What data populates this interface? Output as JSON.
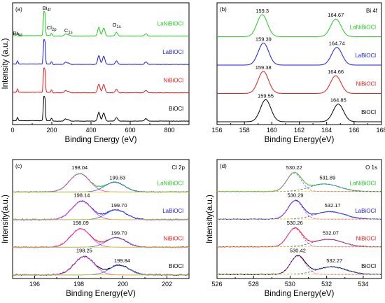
{
  "chart_data": [
    {
      "type": "line",
      "panel_label": "(a)",
      "xlabel": "Binding Energy (eV)",
      "ylabel": "Intensity (a.u.)",
      "xlim": [
        0,
        900
      ],
      "xticks": [
        0,
        200,
        400,
        600,
        800
      ],
      "series": [
        {
          "name": "LaNiBiOCl",
          "color": "#22cc22",
          "offset": 3
        },
        {
          "name": "LaBiOCl",
          "color": "#1a1aee",
          "offset": 2
        },
        {
          "name": "NiBiOCl",
          "color": "#ee1a1a",
          "offset": 1
        },
        {
          "name": "BiOCl",
          "color": "#000000",
          "offset": 0
        }
      ],
      "survey_peaks": [
        {
          "x": 25,
          "h": 0.12
        },
        {
          "x": 160,
          "h": 1.0
        },
        {
          "x": 164,
          "h": 0.85
        },
        {
          "x": 199,
          "h": 0.1
        },
        {
          "x": 270,
          "h": 0.08
        },
        {
          "x": 285,
          "h": 0.05
        },
        {
          "x": 440,
          "h": 0.32
        },
        {
          "x": 465,
          "h": 0.3
        },
        {
          "x": 530,
          "h": 0.13
        },
        {
          "x": 680,
          "h": 0.09
        }
      ],
      "annotations": [
        {
          "text": "Bi 4f",
          "x": 160
        },
        {
          "text": "Bi 5d",
          "x": 25
        },
        {
          "text": "Cl 2p",
          "x": 199
        },
        {
          "text": "C 1s",
          "x": 285
        },
        {
          "text": "O 1s",
          "x": 531
        }
      ]
    },
    {
      "type": "line",
      "panel_label": "(b)",
      "title": "Bi 4f",
      "xlabel": "Binding Energy(eV)",
      "xlim": [
        156,
        168
      ],
      "xticks": [
        156,
        158,
        160,
        162,
        164,
        166,
        168
      ],
      "series": [
        {
          "name": "LaNiBiOCl",
          "color": "#22cc22",
          "peaks": [
            159.3,
            164.67
          ]
        },
        {
          "name": "LaBiOCl",
          "color": "#1a1aee",
          "peaks": [
            159.39,
            164.74
          ]
        },
        {
          "name": "NiBiOCl",
          "color": "#ee1a1a",
          "peaks": [
            159.38,
            164.66
          ]
        },
        {
          "name": "BiOCl",
          "color": "#000000",
          "peaks": [
            159.55,
            164.85
          ]
        }
      ],
      "peak_labels": [
        [
          "159.3",
          "164.67"
        ],
        [
          "159.39",
          "164.74"
        ],
        [
          "159.38",
          "164.66"
        ],
        [
          "159.55",
          "164.85"
        ]
      ]
    },
    {
      "type": "line",
      "panel_label": "(c)",
      "title": "Cl 2p",
      "xlabel": "Binding Energy(eV)",
      "ylabel": "Intensity(a.u.)",
      "xlim": [
        195,
        203
      ],
      "xticks": [
        196,
        198,
        200,
        202
      ],
      "series": [
        {
          "name": "LaNiBiOCl",
          "color": "#22cc22",
          "peaks": [
            198.04,
            199.63
          ]
        },
        {
          "name": "LaBiOCl",
          "color": "#1a1aee",
          "peaks": [
            198.14,
            199.7
          ]
        },
        {
          "name": "NiBiOCl",
          "color": "#ee1a1a",
          "peaks": [
            198.09,
            199.7
          ]
        },
        {
          "name": "BiOCl",
          "color": "#000000",
          "peaks": [
            198.25,
            199.84
          ]
        }
      ],
      "peak_labels": [
        [
          "198.04",
          "199.63"
        ],
        [
          "198.14",
          "199.70"
        ],
        [
          "198.09",
          "199.70"
        ],
        [
          "198.25",
          "199.84"
        ]
      ]
    },
    {
      "type": "line",
      "panel_label": "(d)",
      "title": "O 1s",
      "xlabel": "Binding Energy(eV)",
      "ylabel": "Intensity(a.u.)",
      "xlim": [
        526,
        535
      ],
      "xticks": [
        526,
        528,
        530,
        532,
        534
      ],
      "series": [
        {
          "name": "LaNiBiOCl",
          "color": "#22cc22",
          "peaks": [
            530.22,
            531.89
          ]
        },
        {
          "name": "LaBiOCl",
          "color": "#1a1aee",
          "peaks": [
            530.29,
            532.17
          ]
        },
        {
          "name": "NiBiOCl",
          "color": "#ee1a1a",
          "peaks": [
            530.26,
            532.07
          ]
        },
        {
          "name": "BiOCl",
          "color": "#000000",
          "peaks": [
            530.42,
            532.27
          ]
        }
      ],
      "peak_labels": [
        [
          "530.22",
          "531.89"
        ],
        [
          "530.29",
          "532.17"
        ],
        [
          "530.26",
          "532.07"
        ],
        [
          "530.42",
          "532.27"
        ]
      ]
    }
  ]
}
